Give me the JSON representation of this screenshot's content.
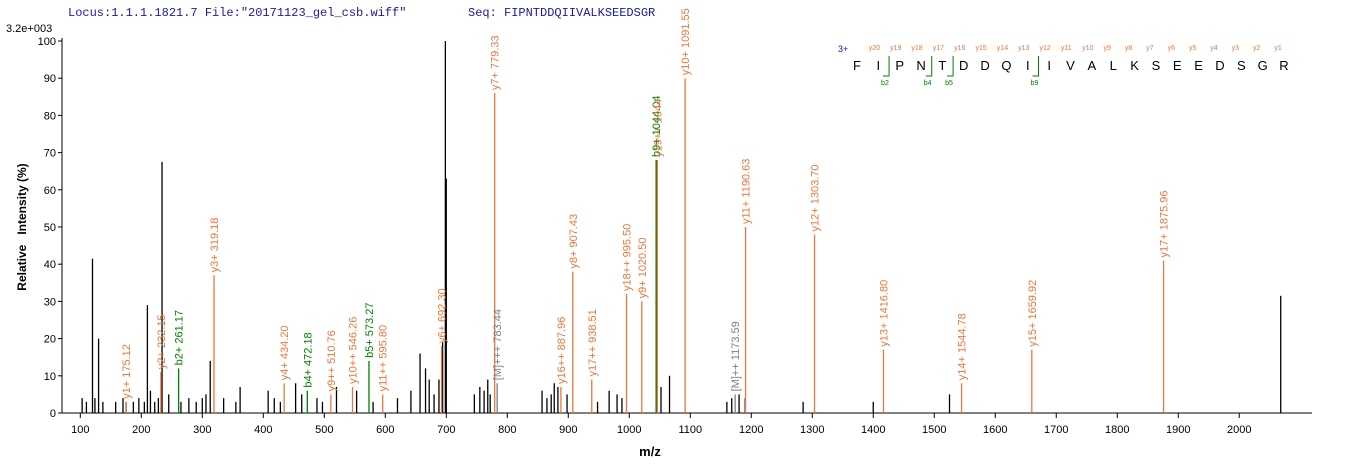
{
  "chart_data": {
    "type": "spectrum",
    "title": "Locus:1.1.1.1821.7 File:\"20171123_gel_csb.wiff\"",
    "subtitle": "Seq: FIPNTDDQIIVALKSEEDSGR",
    "scale_label": "3.2e+003",
    "x_label": "m/z",
    "y_label": "Relative   Intensity (%)",
    "xlim": [
      70,
      2116
    ],
    "ylim": [
      0,
      100
    ],
    "xticks": [
      100,
      200,
      300,
      400,
      500,
      600,
      700,
      800,
      900,
      1000,
      1100,
      1200,
      1300,
      1400,
      1500,
      1600,
      1700,
      1800,
      1900,
      2000
    ],
    "yticks": [
      0,
      10,
      20,
      30,
      40,
      50,
      60,
      70,
      80,
      90,
      100
    ],
    "peaks": {
      "color": "#000000",
      "x": [
        103,
        110,
        120,
        124,
        130,
        137,
        158,
        170,
        175,
        187,
        196,
        205,
        210,
        215,
        222,
        228,
        234,
        245,
        265,
        278,
        290,
        300,
        306,
        313,
        335,
        355,
        362,
        408,
        418,
        428,
        453,
        463,
        488,
        497,
        520,
        553,
        580,
        620,
        642,
        657,
        666,
        672,
        680,
        688,
        694,
        698.5,
        700,
        746,
        755,
        762,
        768,
        772,
        857,
        865,
        872,
        877,
        883,
        898,
        948,
        967,
        980,
        988,
        1045,
        1052,
        1066,
        1160,
        1168,
        1180,
        1190,
        1285,
        1400,
        1525,
        2068
      ],
      "values": [
        4,
        3,
        41.5,
        4,
        20,
        3,
        3,
        4,
        3,
        3,
        4,
        3,
        29,
        6,
        3,
        4,
        67.5,
        5,
        3,
        4,
        3,
        4,
        5,
        14,
        4,
        3,
        7,
        6,
        4,
        3,
        8,
        5,
        4,
        3,
        7,
        6,
        3,
        4,
        6,
        16,
        12,
        9,
        5,
        9,
        19,
        100,
        63,
        5,
        7,
        6,
        9,
        5,
        6,
        4,
        5,
        8,
        7,
        5,
        3,
        6,
        5,
        4,
        68,
        7,
        10,
        3,
        4,
        5,
        4,
        3,
        3,
        5,
        31.5
      ]
    },
    "annotations": [
      {
        "x": 175.12,
        "value": 3,
        "label": "y1+ 175.12",
        "color": "#e8783c"
      },
      {
        "x": 232.15,
        "value": 11,
        "label": "y2+ 232.15",
        "color": "#e8783c"
      },
      {
        "x": 261.17,
        "value": 12,
        "label": "b2+ 261.17",
        "color": "#008000"
      },
      {
        "x": 319.18,
        "value": 37,
        "label": "y3+ 319.18",
        "color": "#e8783c"
      },
      {
        "x": 434.2,
        "value": 8,
        "label": "y4+ 434.20",
        "color": "#e8783c"
      },
      {
        "x": 472.18,
        "value": 6,
        "label": "b4+ 472.18",
        "color": "#008000"
      },
      {
        "x": 510.76,
        "value": 5,
        "label": "y9++ 510.76",
        "color": "#e8783c"
      },
      {
        "x": 546.26,
        "value": 7,
        "label": "y10++ 546.26",
        "color": "#e8783c"
      },
      {
        "x": 573.27,
        "value": 14,
        "label": "b5+ 573.27",
        "color": "#008000"
      },
      {
        "x": 595.8,
        "value": 5,
        "label": "y11++ 595.80",
        "color": "#e8783c"
      },
      {
        "x": 692.3,
        "value": 18,
        "label": "y6+ 692.30",
        "color": "#e8783c"
      },
      {
        "x": 779.33,
        "value": 86,
        "label": "y7+ 779.33",
        "color": "#e8783c"
      },
      {
        "x": 783.44,
        "value": 8,
        "label": "[M]+++ 783.44",
        "color": "#808080"
      },
      {
        "x": 887.96,
        "value": 7,
        "label": "y16++ 887.96",
        "color": "#e8783c"
      },
      {
        "x": 907.43,
        "value": 38,
        "label": "y8+ 907.43",
        "color": "#e8783c"
      },
      {
        "x": 938.51,
        "value": 9,
        "label": "y17++ 938.51",
        "color": "#e8783c"
      },
      {
        "x": 995.5,
        "value": 32,
        "label": "y18++ 995.50",
        "color": "#e8783c"
      },
      {
        "x": 1020.5,
        "value": 30,
        "label": "y9+ 1020.50",
        "color": "#e8783c"
      },
      {
        "x": 1044.04,
        "value": 68,
        "label": "b9+ 1044.04",
        "color": "#008000"
      },
      {
        "x": 1046,
        "value": 68,
        "label": "y19++ 1044",
        "color": "#e8783c"
      },
      {
        "x": 1091.55,
        "value": 90,
        "label": "y10+ 1091.55",
        "color": "#e8783c"
      },
      {
        "x": 1173.59,
        "value": 5,
        "label": "[M]++ 1173.59",
        "color": "#808080"
      },
      {
        "x": 1190.63,
        "value": 50,
        "label": "y11+ 1190.63",
        "color": "#e8783c"
      },
      {
        "x": 1303.7,
        "value": 48,
        "label": "y12+ 1303.70",
        "color": "#e8783c"
      },
      {
        "x": 1416.8,
        "value": 17,
        "label": "y13+ 1416.80",
        "color": "#e8783c"
      },
      {
        "x": 1544.78,
        "value": 8,
        "label": "y14+ 1544.78",
        "color": "#e8783c"
      },
      {
        "x": 1659.92,
        "value": 17,
        "label": "y15+ 1659.92",
        "color": "#e8783c"
      },
      {
        "x": 1875.96,
        "value": 41,
        "label": "y17+ 1875.96",
        "color": "#e8783c"
      }
    ],
    "sequence": {
      "charge": "3+",
      "residues": [
        "F",
        "I",
        "P",
        "N",
        "T",
        "D",
        "D",
        "Q",
        "I",
        "I",
        "V",
        "A",
        "L",
        "K",
        "S",
        "E",
        "E",
        "D",
        "S",
        "G",
        "R"
      ],
      "y_ions": [
        "y20",
        "y19",
        "y18",
        "y17",
        "y16",
        "y15",
        "y14",
        "y13",
        "y12",
        "y11",
        "y10",
        "y9",
        "y8",
        "y7",
        "y6",
        "y5",
        "y4",
        "y3",
        "y2",
        "y1"
      ],
      "b_ions": [
        null,
        "b2",
        null,
        "b4",
        "b5",
        null,
        null,
        null,
        "b9",
        null,
        null,
        null,
        null,
        null,
        null,
        null,
        null,
        null,
        null,
        null
      ]
    }
  }
}
